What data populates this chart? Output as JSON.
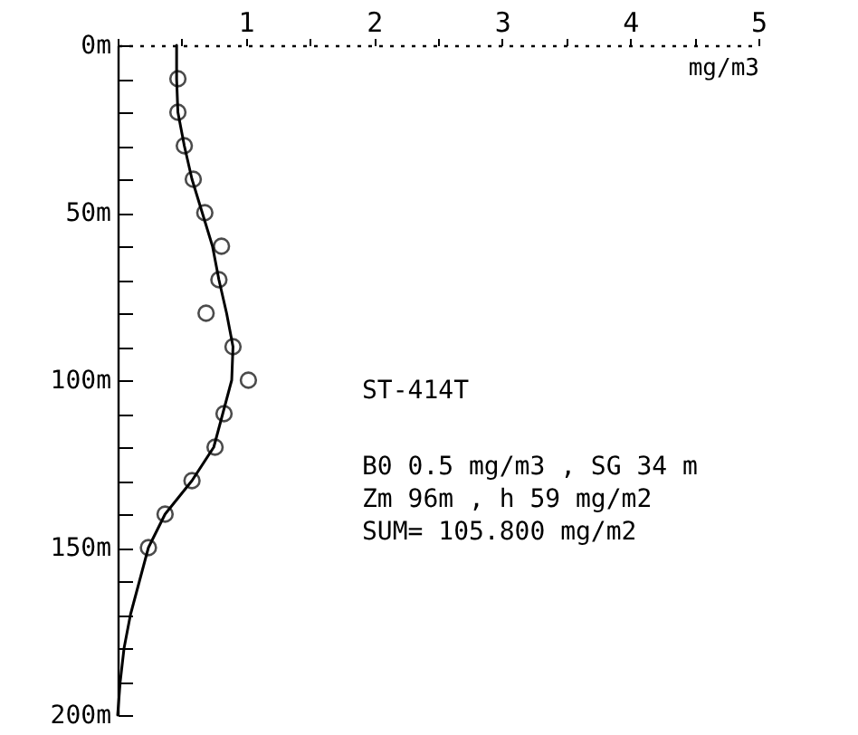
{
  "chart_data": {
    "type": "scatter",
    "xlabel": "mg/m3",
    "xlim": [
      0,
      5
    ],
    "xticks": [
      {
        "value": 0,
        "label": null
      },
      {
        "value": 0.5,
        "label": null
      },
      1,
      {
        "value": 1.5,
        "label": null
      },
      2,
      {
        "value": 2.5,
        "label": null
      },
      3,
      {
        "value": 3.5,
        "label": null
      },
      4,
      {
        "value": 4.5,
        "label": null
      },
      5
    ],
    "ylim": [
      200,
      0
    ],
    "yticks": [
      {
        "value": 0,
        "label": "0m"
      },
      {
        "value": 10,
        "label": null
      },
      {
        "value": 20,
        "label": null
      },
      {
        "value": 30,
        "label": null
      },
      {
        "value": 40,
        "label": null
      },
      {
        "value": 50,
        "label": "50m"
      },
      {
        "value": 60,
        "label": null
      },
      {
        "value": 70,
        "label": null
      },
      {
        "value": 80,
        "label": null
      },
      {
        "value": 90,
        "label": null
      },
      {
        "value": 100,
        "label": "100m"
      },
      {
        "value": 110,
        "label": null
      },
      {
        "value": 120,
        "label": null
      },
      {
        "value": 130,
        "label": null
      },
      {
        "value": 140,
        "label": null
      },
      {
        "value": 150,
        "label": "150m"
      },
      {
        "value": 160,
        "label": null
      },
      {
        "value": 170,
        "label": null
      },
      {
        "value": 180,
        "label": null
      },
      {
        "value": 190,
        "label": null
      },
      {
        "value": 200,
        "label": "200m"
      }
    ],
    "grid": false,
    "series": [
      {
        "color": "#000000",
        "marker": "circle",
        "x": [
          0.47,
          0.47,
          0.52,
          0.59,
          0.68,
          0.81,
          0.79,
          0.69,
          0.9,
          1.02,
          0.83,
          0.76,
          0.58,
          0.37,
          0.24
        ],
        "values": [
          10,
          20,
          30,
          40,
          50,
          60,
          70,
          80,
          90,
          100,
          110,
          120,
          130,
          140,
          150
        ]
      },
      {
        "type": "line",
        "color": "#000000",
        "marker": "none",
        "line_style": "solid",
        "x": [
          0.46,
          0.46,
          0.47,
          0.52,
          0.58,
          0.66,
          0.74,
          0.79,
          0.85,
          0.9,
          0.89,
          0.82,
          0.75,
          0.58,
          0.37,
          0.24,
          0.17,
          0.1,
          0.05,
          0.02,
          0
        ],
        "values": [
          0,
          10,
          20,
          30,
          40,
          50,
          60,
          70,
          80,
          90,
          100,
          110,
          120,
          130,
          140,
          150,
          160,
          170,
          180,
          190,
          200
        ]
      }
    ],
    "annotations": [
      "ST-414T",
      "B0  0.5 mg/m3 ,  SG 34 m",
      "Zm  96m , h 59 mg/m2",
      "SUM= 105.800 mg/m2"
    ]
  }
}
